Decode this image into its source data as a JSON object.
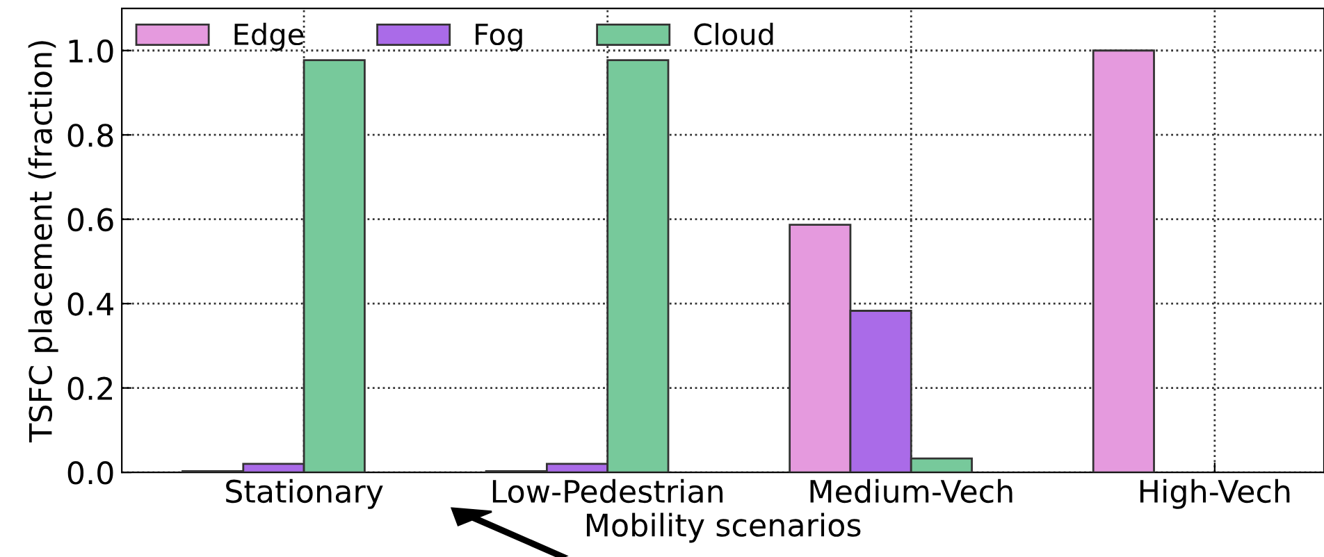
{
  "chart_data": {
    "type": "bar",
    "xlabel": "Mobility scenarios",
    "ylabel": "TSFC placement (fraction)",
    "categories": [
      "Stationary",
      "Low-Pedestrian",
      "Medium-Vech",
      "High-Vech"
    ],
    "series": [
      {
        "name": "Edge",
        "color": "#e59ade",
        "values": [
          0.003,
          0.003,
          0.587,
          1.0
        ]
      },
      {
        "name": "Fog",
        "color": "#aa6be8",
        "values": [
          0.02,
          0.02,
          0.383,
          null
        ]
      },
      {
        "name": "Cloud",
        "color": "#77c99b",
        "values": [
          0.977,
          0.977,
          0.033,
          null
        ]
      }
    ],
    "ylim": [
      0,
      1.1
    ],
    "yticks": [
      {
        "value": 0,
        "label": "0.0"
      },
      0.2,
      0.4,
      0.6,
      0.8,
      {
        "value": 1,
        "label": "1.0"
      }
    ],
    "grid": true,
    "legend": "top left"
  }
}
